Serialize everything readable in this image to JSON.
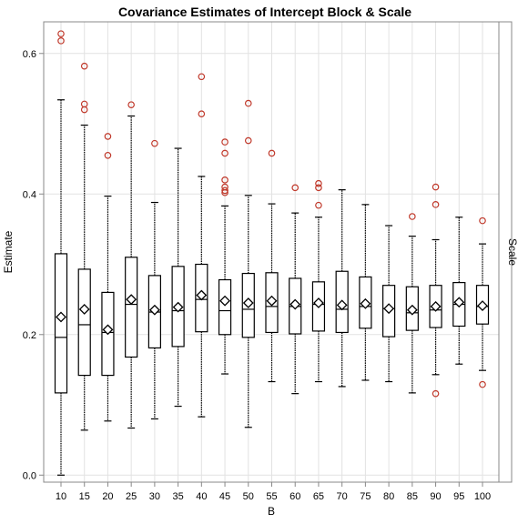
{
  "chart_data": {
    "type": "box",
    "title": "Covariance Estimates of Intercept Block & Scale",
    "xlabel": "B",
    "ylabel": "Estimate",
    "panel_label": "Scale",
    "ylim": [
      -0.01,
      0.645
    ],
    "yticks": [
      0.0,
      0.2,
      0.4,
      0.6
    ],
    "ytick_labels": [
      "0.0",
      "0.2",
      "0.4",
      "0.6"
    ],
    "grid": true,
    "colors": {
      "box": "#000000",
      "outlier": "#c0392b",
      "mean_marker": "#000000",
      "grid": "#e2e2e2"
    },
    "categories": [
      "10",
      "15",
      "20",
      "25",
      "30",
      "35",
      "40",
      "45",
      "50",
      "55",
      "60",
      "65",
      "70",
      "75",
      "80",
      "85",
      "90",
      "95",
      "100"
    ],
    "boxes": [
      {
        "category": "10",
        "min": 0.0,
        "q1": 0.117,
        "median": 0.196,
        "q3": 0.315,
        "max": 0.534,
        "mean": 0.225,
        "outliers": [
          0.618,
          0.628
        ]
      },
      {
        "category": "15",
        "min": 0.064,
        "q1": 0.142,
        "median": 0.214,
        "q3": 0.293,
        "max": 0.498,
        "mean": 0.236,
        "outliers": [
          0.52,
          0.528,
          0.582
        ]
      },
      {
        "category": "20",
        "min": 0.077,
        "q1": 0.142,
        "median": 0.203,
        "q3": 0.26,
        "max": 0.397,
        "mean": 0.207,
        "outliers": [
          0.455,
          0.482
        ]
      },
      {
        "category": "25",
        "min": 0.067,
        "q1": 0.168,
        "median": 0.243,
        "q3": 0.31,
        "max": 0.511,
        "mean": 0.25,
        "outliers": [
          0.527
        ]
      },
      {
        "category": "30",
        "min": 0.08,
        "q1": 0.181,
        "median": 0.232,
        "q3": 0.284,
        "max": 0.388,
        "mean": 0.235,
        "outliers": [
          0.472
        ]
      },
      {
        "category": "35",
        "min": 0.098,
        "q1": 0.183,
        "median": 0.234,
        "q3": 0.297,
        "max": 0.465,
        "mean": 0.239,
        "outliers": []
      },
      {
        "category": "40",
        "min": 0.083,
        "q1": 0.204,
        "median": 0.25,
        "q3": 0.3,
        "max": 0.425,
        "mean": 0.256,
        "outliers": [
          0.514,
          0.567
        ]
      },
      {
        "category": "45",
        "min": 0.144,
        "q1": 0.2,
        "median": 0.234,
        "q3": 0.278,
        "max": 0.383,
        "mean": 0.248,
        "outliers": [
          0.402,
          0.405,
          0.41,
          0.42,
          0.458,
          0.474
        ]
      },
      {
        "category": "50",
        "min": 0.068,
        "q1": 0.196,
        "median": 0.236,
        "q3": 0.287,
        "max": 0.398,
        "mean": 0.245,
        "outliers": [
          0.476,
          0.529
        ]
      },
      {
        "category": "55",
        "min": 0.133,
        "q1": 0.203,
        "median": 0.24,
        "q3": 0.288,
        "max": 0.386,
        "mean": 0.248,
        "outliers": [
          0.458
        ]
      },
      {
        "category": "60",
        "min": 0.116,
        "q1": 0.201,
        "median": 0.24,
        "q3": 0.28,
        "max": 0.373,
        "mean": 0.243,
        "outliers": [
          0.409
        ]
      },
      {
        "category": "65",
        "min": 0.133,
        "q1": 0.205,
        "median": 0.243,
        "q3": 0.275,
        "max": 0.367,
        "mean": 0.245,
        "outliers": [
          0.384,
          0.409,
          0.415
        ]
      },
      {
        "category": "70",
        "min": 0.126,
        "q1": 0.203,
        "median": 0.236,
        "q3": 0.29,
        "max": 0.406,
        "mean": 0.242,
        "outliers": []
      },
      {
        "category": "75",
        "min": 0.135,
        "q1": 0.209,
        "median": 0.24,
        "q3": 0.282,
        "max": 0.385,
        "mean": 0.244,
        "outliers": []
      },
      {
        "category": "80",
        "min": 0.133,
        "q1": 0.197,
        "median": 0.237,
        "q3": 0.27,
        "max": 0.355,
        "mean": 0.237,
        "outliers": []
      },
      {
        "category": "85",
        "min": 0.117,
        "q1": 0.206,
        "median": 0.231,
        "q3": 0.268,
        "max": 0.34,
        "mean": 0.235,
        "outliers": [
          0.368
        ]
      },
      {
        "category": "90",
        "min": 0.143,
        "q1": 0.21,
        "median": 0.235,
        "q3": 0.27,
        "max": 0.335,
        "mean": 0.24,
        "outliers": [
          0.116,
          0.385,
          0.41
        ]
      },
      {
        "category": "95",
        "min": 0.158,
        "q1": 0.212,
        "median": 0.243,
        "q3": 0.274,
        "max": 0.367,
        "mean": 0.246,
        "outliers": []
      },
      {
        "category": "100",
        "min": 0.149,
        "q1": 0.215,
        "median": 0.24,
        "q3": 0.27,
        "max": 0.329,
        "mean": 0.241,
        "outliers": [
          0.129,
          0.362
        ]
      }
    ]
  }
}
